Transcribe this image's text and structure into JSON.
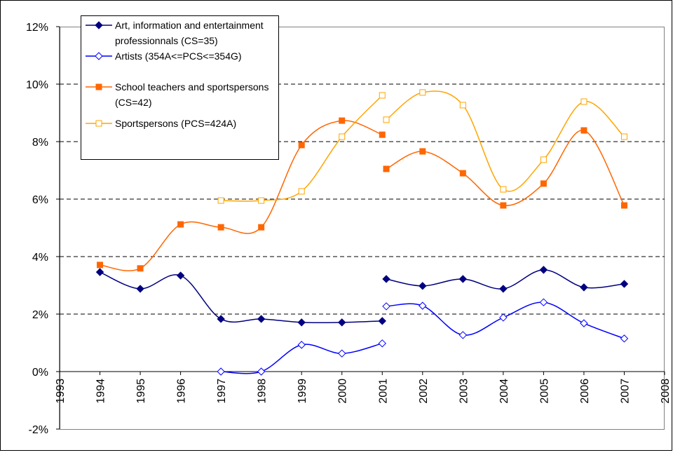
{
  "chart_data": {
    "type": "line",
    "x": [
      1994,
      1995,
      1996,
      1997,
      1998,
      1999,
      2000,
      2001,
      null,
      2001.1,
      2002,
      2003,
      2004,
      2005,
      2006,
      2007
    ],
    "xlim": [
      1993,
      2008
    ],
    "xticks": [
      1993,
      1994,
      1995,
      1996,
      1997,
      1998,
      1999,
      2000,
      2001,
      2002,
      2003,
      2004,
      2005,
      2006,
      2007,
      2008
    ],
    "ylim": [
      -2,
      12
    ],
    "yticks": [
      {
        "value": -2,
        "label": "-2%"
      },
      {
        "value": 0,
        "label": "0%"
      },
      {
        "value": 2,
        "label": "2%"
      },
      {
        "value": 4,
        "label": "4%"
      },
      {
        "value": 6,
        "label": "6%"
      },
      {
        "value": 8,
        "label": "8%"
      },
      {
        "value": 10,
        "label": "10%"
      },
      {
        "value": 12,
        "label": "12%"
      }
    ],
    "grid": true,
    "smooth": true,
    "legend": "top-left",
    "series": [
      {
        "name": "Art, information and entertainment professionnals (CS=35)",
        "color": "#000080",
        "marker": "diamond-filled",
        "values": [
          3.46,
          2.88,
          3.34,
          1.83,
          1.83,
          1.71,
          1.71,
          1.76,
          null,
          3.22,
          2.98,
          3.22,
          2.88,
          3.54,
          2.93,
          3.05
        ]
      },
      {
        "name": "Artists (354A<=PCS<=354G)",
        "color": "#0000ff",
        "marker": "diamond-open",
        "values": [
          null,
          null,
          null,
          0,
          0,
          0.93,
          0.63,
          0.98,
          null,
          2.27,
          2.29,
          1.27,
          1.88,
          2.41,
          1.68,
          1.15
        ]
      },
      {
        "name": "School teachers and sportspersons (CS=42)",
        "color": "#ff6600",
        "marker": "square-filled",
        "values": [
          3.71,
          3.59,
          5.12,
          5.02,
          5.02,
          7.88,
          8.73,
          8.24,
          null,
          7.05,
          7.66,
          6.9,
          5.78,
          6.54,
          8.39,
          5.78
        ]
      },
      {
        "name": "Sportspersons (PCS=424A)",
        "color": "#ffa500",
        "marker": "square-open",
        "values": [
          null,
          null,
          null,
          5.95,
          5.95,
          6.27,
          8.17,
          9.61,
          null,
          8.76,
          9.71,
          9.27,
          6.34,
          7.37,
          9.39,
          8.17
        ]
      }
    ]
  }
}
